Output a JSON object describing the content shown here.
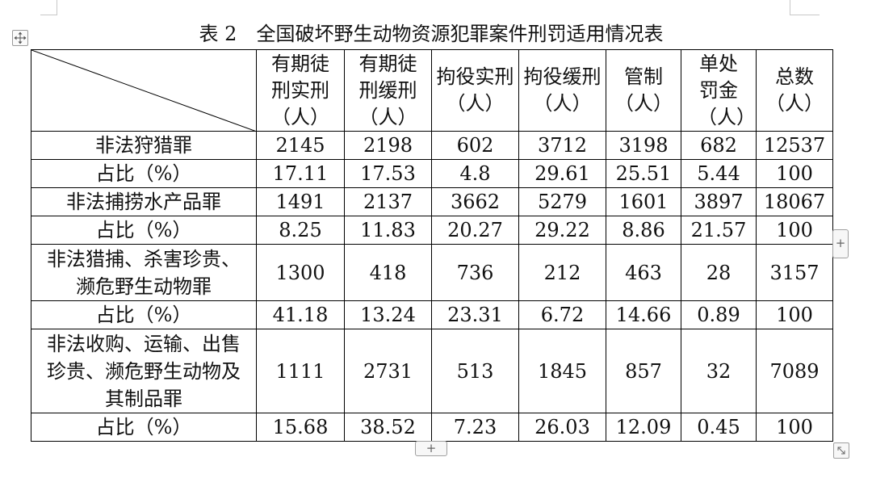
{
  "table_title": "表 2　全国破坏野生动物资源犯罪案件刑罚适用情况表",
  "controls": {
    "move_icon": "move-arrows-icon",
    "add_column_label": "+",
    "add_row_label": "+",
    "resize_icon": "resize-diagonal-icon"
  },
  "header": [
    "有期徒刑实刑（人）",
    "有期徒刑缓刑（人）",
    "拘役实刑（人）",
    "拘役缓刑（人）",
    "管制（人）",
    "单处罚金（人）",
    "总数（人）"
  ],
  "rows": [
    {
      "label": "非法狩猎罪",
      "values": [
        "2145",
        "2198",
        "602",
        "3712",
        "3198",
        "682",
        "12537"
      ]
    },
    {
      "label": "占比（%）",
      "values": [
        "17.11",
        "17.53",
        "4.8",
        "29.61",
        "25.51",
        "5.44",
        "100"
      ]
    },
    {
      "label": "非法捕捞水产品罪",
      "values": [
        "1491",
        "2137",
        "3662",
        "5279",
        "1601",
        "3897",
        "18067"
      ]
    },
    {
      "label": "占比（%）",
      "values": [
        "8.25",
        "11.83",
        "20.27",
        "29.22",
        "8.86",
        "21.57",
        "100"
      ]
    },
    {
      "label": "非法猎捕、杀害珍贵、濒危野生动物罪",
      "values": [
        "1300",
        "418",
        "736",
        "212",
        "463",
        "28",
        "3157"
      ]
    },
    {
      "label": "占比（%）",
      "values": [
        "41.18",
        "13.24",
        "23.31",
        "6.72",
        "14.66",
        "0.89",
        "100"
      ]
    },
    {
      "label": "非法收购、运输、出售珍贵、濒危野生动物及其制品罪",
      "values": [
        "1111",
        "2731",
        "513",
        "1845",
        "857",
        "32",
        "7089"
      ]
    },
    {
      "label": "占比（%）",
      "values": [
        "15.68",
        "38.52",
        "7.23",
        "26.03",
        "12.09",
        "0.45",
        "100"
      ]
    }
  ]
}
